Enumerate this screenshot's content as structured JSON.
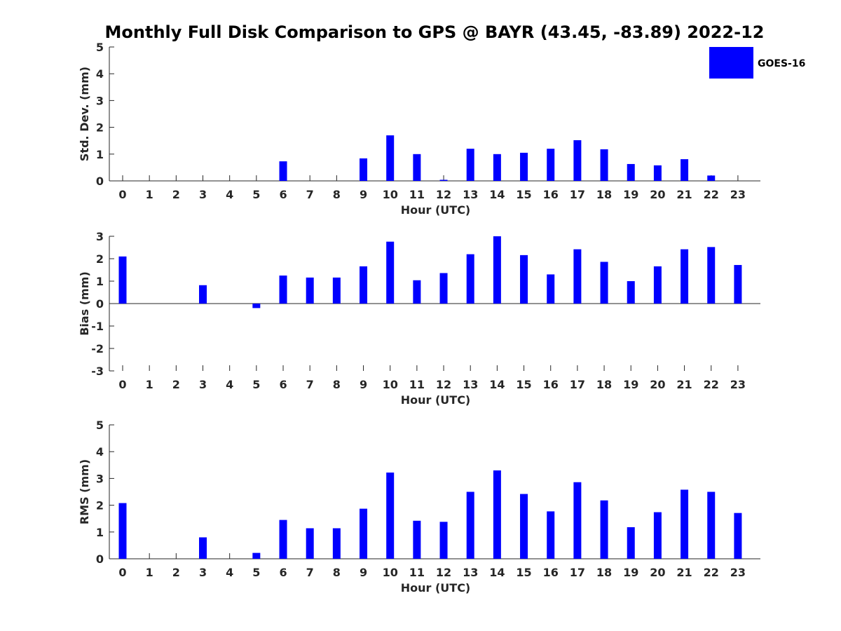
{
  "title": "Monthly Full Disk Comparison to GPS @ BAYR (43.45, -83.89) 2022-12",
  "legend": {
    "label": "GOES-16",
    "color": "#0000ff"
  },
  "chart_data": [
    {
      "type": "bar",
      "id": "std",
      "xlabel": "Hour (UTC)",
      "ylabel": "Std. Dev. (mm)",
      "ylim": [
        0,
        5
      ],
      "yticks": [
        0,
        1,
        2,
        3,
        4,
        5
      ],
      "categories": [
        "0",
        "1",
        "2",
        "3",
        "4",
        "5",
        "6",
        "7",
        "8",
        "9",
        "10",
        "11",
        "12",
        "13",
        "14",
        "15",
        "16",
        "17",
        "18",
        "19",
        "20",
        "21",
        "22",
        "23"
      ],
      "series": [
        {
          "name": "GOES-16",
          "values": [
            null,
            null,
            null,
            null,
            null,
            null,
            0.73,
            null,
            null,
            0.84,
            1.7,
            1.0,
            0.04,
            1.2,
            1.0,
            1.05,
            1.2,
            1.52,
            1.18,
            0.63,
            0.58,
            0.81,
            0.2,
            null
          ]
        }
      ]
    },
    {
      "type": "bar",
      "id": "bias",
      "xlabel": "Hour (UTC)",
      "ylabel": "Bias (mm)",
      "ylim": [
        -3,
        3
      ],
      "yticks": [
        -3,
        -2,
        -1,
        0,
        1,
        2,
        3
      ],
      "categories": [
        "0",
        "1",
        "2",
        "3",
        "4",
        "5",
        "6",
        "7",
        "8",
        "9",
        "10",
        "11",
        "12",
        "13",
        "14",
        "15",
        "16",
        "17",
        "18",
        "19",
        "20",
        "21",
        "22",
        "23"
      ],
      "series": [
        {
          "name": "GOES-16",
          "values": [
            2.1,
            null,
            null,
            0.82,
            null,
            -0.2,
            1.25,
            1.16,
            1.16,
            1.66,
            2.76,
            1.04,
            1.36,
            2.2,
            3.0,
            2.16,
            1.3,
            2.42,
            1.86,
            1.0,
            1.66,
            2.42,
            2.52,
            1.72
          ]
        }
      ]
    },
    {
      "type": "bar",
      "id": "rms",
      "xlabel": "Hour (UTC)",
      "ylabel": "RMS (mm)",
      "ylim": [
        0,
        5
      ],
      "yticks": [
        0,
        1,
        2,
        3,
        4,
        5
      ],
      "categories": [
        "0",
        "1",
        "2",
        "3",
        "4",
        "5",
        "6",
        "7",
        "8",
        "9",
        "10",
        "11",
        "12",
        "13",
        "14",
        "15",
        "16",
        "17",
        "18",
        "19",
        "20",
        "21",
        "22",
        "23"
      ],
      "series": [
        {
          "name": "GOES-16",
          "values": [
            2.08,
            null,
            null,
            0.8,
            null,
            0.22,
            1.45,
            1.14,
            1.14,
            1.87,
            3.22,
            1.42,
            1.38,
            2.5,
            3.3,
            2.42,
            1.77,
            2.86,
            2.18,
            1.18,
            1.74,
            2.58,
            2.5,
            1.71
          ]
        }
      ]
    }
  ]
}
